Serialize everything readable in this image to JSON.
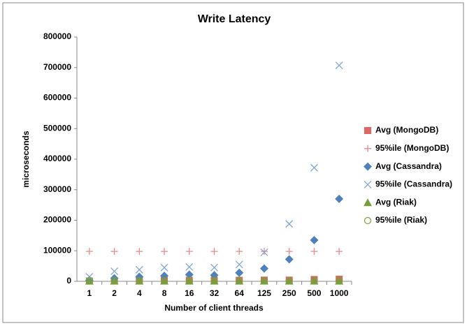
{
  "chart_data": {
    "type": "scatter",
    "title": "Write Latency",
    "x_label": "Number of client threads",
    "y_label": "microseconds",
    "categories": [
      "1",
      "2",
      "4",
      "8",
      "16",
      "32",
      "64",
      "125",
      "250",
      "500",
      "1000"
    ],
    "series": [
      {
        "name": "Avg (MongoDB)",
        "color": "#e06666",
        "marker": "square",
        "values": [
          1000,
          1500,
          2000,
          3000,
          3500,
          3500,
          3500,
          4000,
          4000,
          6000,
          7000
        ]
      },
      {
        "name": "95%ile (MongoDB)",
        "color": "#e88a8a",
        "marker": "plus",
        "values": [
          98000,
          98000,
          98000,
          98000,
          98000,
          98000,
          98000,
          98000,
          98000,
          98000,
          98000
        ]
      },
      {
        "name": "Avg (Cassandra)",
        "color": "#4f81bd",
        "marker": "diamond",
        "values": [
          3000,
          10000,
          15000,
          18000,
          22000,
          20000,
          28000,
          42000,
          72000,
          135000,
          270000
        ]
      },
      {
        "name": "95%ile (Cassandra)",
        "color": "#7fa6d6",
        "marker": "x",
        "values": [
          15000,
          33000,
          38000,
          45000,
          47000,
          45000,
          55000,
          95000,
          188000,
          372000,
          707000
        ]
      },
      {
        "name": "Avg (Riak)",
        "color": "#77a03c",
        "marker": "triangle",
        "values": [
          1000,
          1000,
          1000,
          1000,
          1000,
          1000,
          1000,
          1000,
          1000,
          1000,
          1000
        ]
      },
      {
        "name": "95%ile (Riak)",
        "color": "#77a03c",
        "marker": "circle",
        "values": [
          3000,
          3000,
          3000,
          3000,
          3000,
          3000,
          3000,
          3000,
          3000,
          3000,
          3000
        ]
      }
    ],
    "ylim": [
      0,
      800000
    ],
    "yticks": [
      0,
      100000,
      200000,
      300000,
      400000,
      500000,
      600000,
      700000,
      800000
    ],
    "grid": false,
    "legend": "right"
  }
}
